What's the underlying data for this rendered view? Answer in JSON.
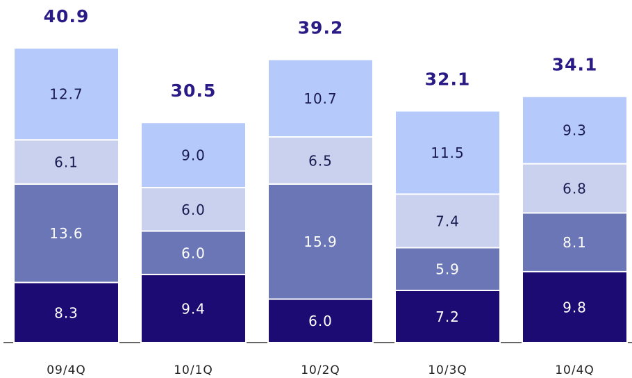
{
  "chart_data": {
    "type": "stacked_bar",
    "categories": [
      "09/4Q",
      "10/1Q",
      "10/2Q",
      "10/3Q",
      "10/4Q"
    ],
    "series": [
      {
        "color": "#1c0b72",
        "values": [
          8.3,
          9.4,
          6.0,
          7.2,
          9.8
        ],
        "value_labels": [
          "8.3",
          "9.4",
          "6.0",
          "7.2",
          "9.8"
        ]
      },
      {
        "color": "#6a76b6",
        "values": [
          13.6,
          6.0,
          15.9,
          5.9,
          8.1
        ],
        "value_labels": [
          "13.6",
          "6.0",
          "15.9",
          "5.9",
          "8.1"
        ]
      },
      {
        "color": "#c9d1ee",
        "values": [
          6.1,
          6.0,
          6.5,
          7.4,
          6.8
        ],
        "value_labels": [
          "6.1",
          "6.0",
          "6.5",
          "7.4",
          "6.8"
        ]
      },
      {
        "color": "#b5cafa",
        "values": [
          12.7,
          9.0,
          10.7,
          11.5,
          9.3
        ],
        "value_labels": [
          "12.7",
          "9.0",
          "10.7",
          "11.5",
          "9.3"
        ]
      }
    ],
    "totals": [
      40.9,
      30.5,
      39.2,
      32.1,
      34.1
    ]
  }
}
